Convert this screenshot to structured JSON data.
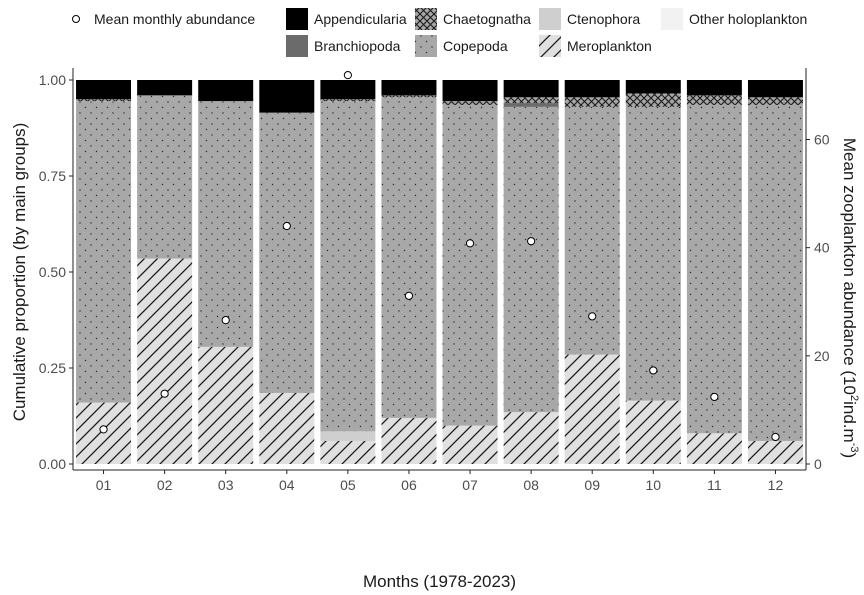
{
  "chart_data": {
    "type": "bar",
    "stacked": true,
    "xlabel": "Months (1978-2023)",
    "ylabel": "Cumulative proportion (by main groups)",
    "y2label": {
      "prefix": "Mean zooplankton abundance (10",
      "sup1": "2",
      "mid": "ind.m",
      "sup2": "-3",
      "suffix": ")"
    },
    "ylim": [
      0,
      1
    ],
    "y2lim": [
      0,
      71
    ],
    "yticks": [
      "0.00",
      "0.25",
      "0.50",
      "0.75",
      "1.00"
    ],
    "y2ticks": [
      "0",
      "20",
      "40",
      "60"
    ],
    "categories": [
      "01",
      "02",
      "03",
      "04",
      "05",
      "06",
      "07",
      "08",
      "09",
      "10",
      "11",
      "12"
    ],
    "legend": [
      {
        "label": "Mean monthly abundance",
        "key": "mean"
      },
      {
        "label": "Appendicularia",
        "key": "appendicularia"
      },
      {
        "label": "Chaetognatha",
        "key": "chaetognatha"
      },
      {
        "label": "Ctenophora",
        "key": "ctenophora"
      },
      {
        "label": "Other holoplankton",
        "key": "other"
      },
      {
        "label": "Branchiopoda",
        "key": "branchiopoda"
      },
      {
        "label": "Copepoda",
        "key": "copepoda"
      },
      {
        "label": "Meroplankton",
        "key": "meroplankton"
      }
    ],
    "stack_order": [
      "meroplankton",
      "ctenophora",
      "copepoda",
      "branchiopoda",
      "chaetognatha",
      "other",
      "appendicularia"
    ],
    "series": [
      {
        "name": "Meroplankton",
        "key": "meroplankton",
        "values": [
          0.16,
          0.535,
          0.305,
          0.185,
          0.06,
          0.12,
          0.1,
          0.135,
          0.285,
          0.165,
          0.08,
          0.06
        ]
      },
      {
        "name": "Ctenophora",
        "key": "ctenophora",
        "values": [
          0.0,
          0.0,
          0.0,
          0.0,
          0.025,
          0.0,
          0.0,
          0.0,
          0.0,
          0.0,
          0.0,
          0.0
        ]
      },
      {
        "name": "Copepoda",
        "key": "copepoda",
        "values": [
          0.785,
          0.425,
          0.64,
          0.73,
          0.86,
          0.835,
          0.835,
          0.795,
          0.645,
          0.765,
          0.855,
          0.875
        ]
      },
      {
        "name": "Branchiopoda",
        "key": "branchiopoda",
        "values": [
          0.0,
          0.0,
          0.0,
          0.0,
          0.0,
          0.0,
          0.0,
          0.01,
          0.0,
          0.0,
          0.0,
          0.0
        ]
      },
      {
        "name": "Chaetognatha",
        "key": "chaetognatha",
        "values": [
          0.005,
          0.0,
          0.0,
          0.0,
          0.005,
          0.005,
          0.01,
          0.015,
          0.025,
          0.035,
          0.025,
          0.02
        ]
      },
      {
        "name": "Other holoplankton",
        "key": "other",
        "values": [
          0.0,
          0.0,
          0.0,
          0.0,
          0.0,
          0.0,
          0.0,
          0.0,
          0.0,
          0.0,
          0.0,
          0.0
        ]
      },
      {
        "name": "Appendicularia",
        "key": "appendicularia",
        "values": [
          0.05,
          0.04,
          0.055,
          0.085,
          0.05,
          0.04,
          0.055,
          0.045,
          0.045,
          0.035,
          0.04,
          0.045
        ]
      }
    ],
    "mean_abundance": {
      "name": "Mean monthly abundance",
      "values": [
        6.4,
        13.0,
        26.6,
        44.0,
        71.9,
        31.1,
        40.8,
        41.2,
        27.3,
        17.3,
        12.4,
        5.0
      ]
    },
    "colors": {
      "appendicularia": "#000000",
      "branchiopoda": "#6b6b6b",
      "chaetognatha": "#a6a6a6",
      "ctenophora": "#cfcfcf",
      "copepoda": "#a8a8a8",
      "meroplankton": "#e0e0e0",
      "other": "#f2f2f2",
      "point_fill": "#ffffff",
      "point_stroke": "#000000"
    }
  }
}
